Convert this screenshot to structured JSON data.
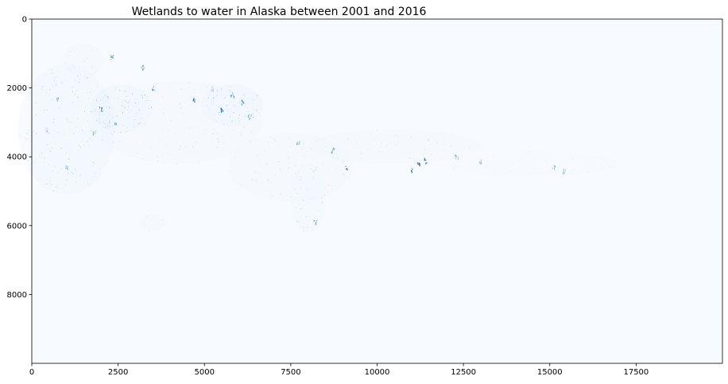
{
  "chart_data": {
    "type": "heatmap",
    "title": "Wetlands to water in Alaska between 2001 and 2016",
    "xlabel": "",
    "ylabel": "",
    "xlim": [
      0,
      20000
    ],
    "ylim": [
      10000,
      0
    ],
    "x_ticks": [
      0,
      2500,
      5000,
      7500,
      10000,
      12500,
      15000,
      17500
    ],
    "x_tick_labels": [
      "0",
      "2500",
      "5000",
      "7500",
      "10000",
      "12500",
      "15000",
      "17500"
    ],
    "y_ticks": [
      0,
      2000,
      4000,
      6000,
      8000
    ],
    "y_tick_labels": [
      "0",
      "2000",
      "4000",
      "6000",
      "8000"
    ],
    "colormap": "Blues",
    "background_color": "#f7fbff",
    "high_color": "#08306b",
    "grid": false,
    "regions": [
      {
        "x": 1000,
        "y": 3200,
        "rx": 1400,
        "ry": 1900,
        "intensity": 0.25
      },
      {
        "x": 2600,
        "y": 2600,
        "rx": 900,
        "ry": 700,
        "intensity": 0.35
      },
      {
        "x": 5800,
        "y": 2500,
        "rx": 900,
        "ry": 600,
        "intensity": 0.35
      },
      {
        "x": 4200,
        "y": 3000,
        "rx": 2500,
        "ry": 1200,
        "intensity": 0.15
      },
      {
        "x": 7500,
        "y": 4300,
        "rx": 1800,
        "ry": 1000,
        "intensity": 0.15
      },
      {
        "x": 8000,
        "y": 5200,
        "rx": 500,
        "ry": 1000,
        "intensity": 0.2
      },
      {
        "x": 10500,
        "y": 3700,
        "rx": 2500,
        "ry": 500,
        "intensity": 0.12
      },
      {
        "x": 14500,
        "y": 4200,
        "rx": 2500,
        "ry": 350,
        "intensity": 0.08
      },
      {
        "x": 1500,
        "y": 1200,
        "rx": 600,
        "ry": 500,
        "intensity": 0.15
      },
      {
        "x": 3500,
        "y": 5900,
        "rx": 400,
        "ry": 250,
        "intensity": 0.12
      }
    ],
    "hotspots": [
      {
        "x": 2300,
        "y": 1100,
        "v": 0.7
      },
      {
        "x": 3200,
        "y": 1400,
        "v": 0.75
      },
      {
        "x": 3500,
        "y": 2000,
        "v": 0.65
      },
      {
        "x": 750,
        "y": 2300,
        "v": 0.6
      },
      {
        "x": 2000,
        "y": 2600,
        "v": 0.7
      },
      {
        "x": 4700,
        "y": 2300,
        "v": 0.85
      },
      {
        "x": 5500,
        "y": 2600,
        "v": 0.8
      },
      {
        "x": 5800,
        "y": 2200,
        "v": 0.7
      },
      {
        "x": 6100,
        "y": 2400,
        "v": 0.75
      },
      {
        "x": 6300,
        "y": 2800,
        "v": 0.6
      },
      {
        "x": 1800,
        "y": 3300,
        "v": 0.55
      },
      {
        "x": 2400,
        "y": 3000,
        "v": 0.6
      },
      {
        "x": 1000,
        "y": 4300,
        "v": 0.55
      },
      {
        "x": 7700,
        "y": 3600,
        "v": 0.75
      },
      {
        "x": 8700,
        "y": 3800,
        "v": 0.55
      },
      {
        "x": 9100,
        "y": 4300,
        "v": 0.8
      },
      {
        "x": 11000,
        "y": 4400,
        "v": 0.7
      },
      {
        "x": 11200,
        "y": 4150,
        "v": 0.9
      },
      {
        "x": 11400,
        "y": 4100,
        "v": 0.95
      },
      {
        "x": 12300,
        "y": 4000,
        "v": 0.5
      },
      {
        "x": 13000,
        "y": 4100,
        "v": 0.45
      },
      {
        "x": 15100,
        "y": 4300,
        "v": 0.5
      },
      {
        "x": 15400,
        "y": 4400,
        "v": 0.55
      },
      {
        "x": 8200,
        "y": 5900,
        "v": 0.6
      },
      {
        "x": 5200,
        "y": 2000,
        "v": 0.4
      },
      {
        "x": 400,
        "y": 3200,
        "v": 0.4
      }
    ]
  }
}
